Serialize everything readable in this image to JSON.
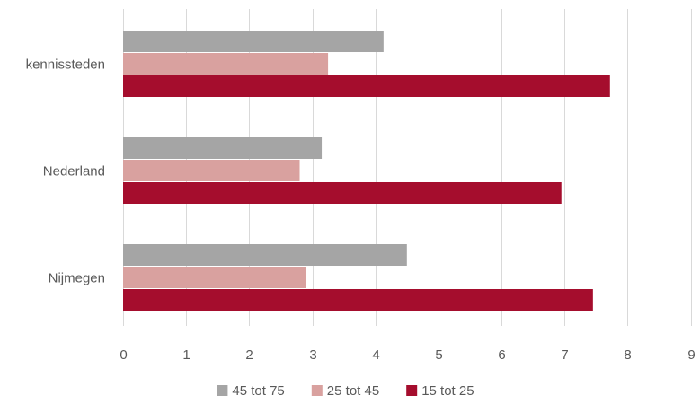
{
  "chart_data": {
    "type": "bar",
    "orientation": "horizontal",
    "categories": [
      "kennissteden",
      "Nederland",
      "Nijmegen"
    ],
    "series": [
      {
        "name": "45 tot 75",
        "color": "#a5a5a5",
        "values": [
          4.13,
          3.15,
          4.5
        ]
      },
      {
        "name": "25 tot 45",
        "color": "#d9a19f",
        "values": [
          3.25,
          2.8,
          2.9
        ]
      },
      {
        "name": "15 tot 25",
        "color": "#a50d2d",
        "values": [
          7.72,
          6.95,
          7.45
        ]
      }
    ],
    "xlim": [
      0,
      9
    ],
    "xticks": [
      "0",
      "1",
      "2",
      "3",
      "4",
      "5",
      "6",
      "7",
      "8",
      "9"
    ],
    "grid": true,
    "legend_position": "bottom"
  }
}
